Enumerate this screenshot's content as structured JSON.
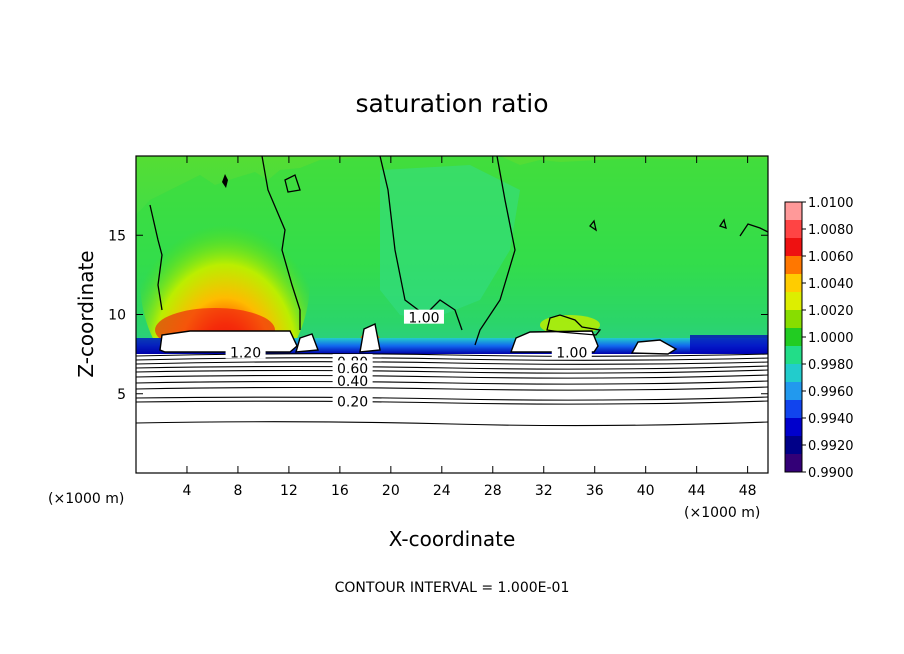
{
  "chart_data": {
    "type": "heatmap",
    "title": "saturation ratio",
    "xlabel": "X-coordinate",
    "ylabel": "Z-coordinate",
    "x_unit": "(×1000 m)",
    "y_unit": "(×1000 m)",
    "footer": "CONTOUR INTERVAL = 1.000E-01",
    "xlim": [
      0,
      49.6
    ],
    "ylim": [
      0,
      20
    ],
    "x_ticks": [
      4,
      8,
      12,
      16,
      20,
      24,
      28,
      32,
      36,
      40,
      44,
      48
    ],
    "y_ticks": [
      5,
      10,
      15
    ],
    "colorbar": {
      "min": 0.99,
      "max": 1.01,
      "labels": [
        "1.0100",
        "1.0080",
        "1.0060",
        "1.0040",
        "1.0020",
        "1.0000",
        "0.9980",
        "0.9960",
        "0.9940",
        "0.9920",
        "0.9900"
      ],
      "colors": [
        "#ff9999",
        "#ff4444",
        "#ee1111",
        "#ff7700",
        "#ffcc00",
        "#ddee00",
        "#88dd00",
        "#22cc22",
        "#22dd88",
        "#22cccc",
        "#2299ee",
        "#1144ee",
        "#0000cc",
        "#000088",
        "#330077"
      ]
    },
    "contour_labels": [
      {
        "text": "1.20",
        "x": 8.6,
        "z": 7.6
      },
      {
        "text": "1.00",
        "x": 34.2,
        "z": 7.6
      },
      {
        "text": "1.00",
        "x": 22.6,
        "z": 9.8
      },
      {
        "text": "0.80",
        "x": 17.0,
        "z": 7.0
      },
      {
        "text": "0.60",
        "x": 17.0,
        "z": 6.6
      },
      {
        "text": "0.40",
        "x": 17.0,
        "z": 5.8
      },
      {
        "text": "0.20",
        "x": 17.0,
        "z": 4.5
      }
    ],
    "contour_levels_z": [
      7.3,
      7.1,
      6.9,
      6.6,
      6.3,
      6.0,
      5.7,
      5.4,
      4.9,
      4.5,
      3.0
    ]
  }
}
